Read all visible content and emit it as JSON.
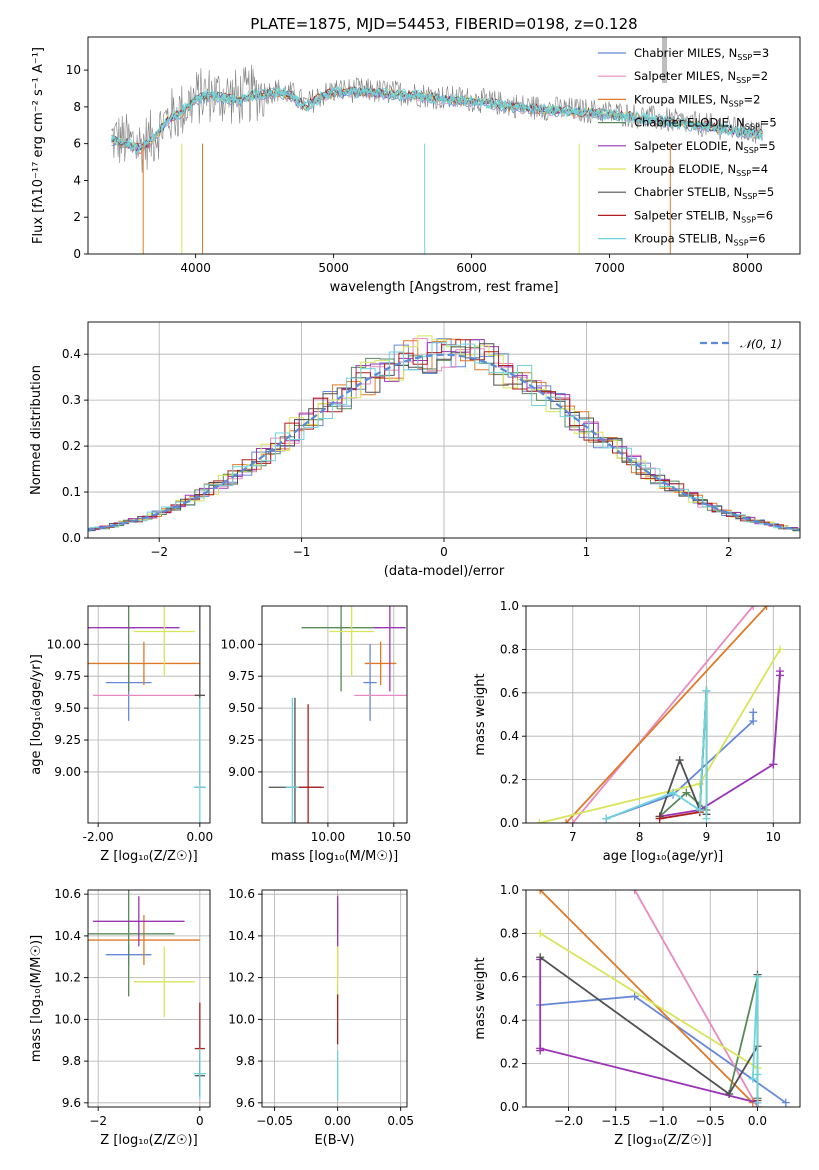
{
  "chart_data": [
    {
      "id": "spectrum",
      "type": "line",
      "title": "PLATE=1875, MJD=54453, FIBERID=0198, z=0.128",
      "xlabel": "wavelength [Angstrom, rest frame]",
      "ylabel": "Flux [fλ10⁻¹⁷ erg cm⁻² s⁻¹ A⁻¹]",
      "xlim": [
        3220,
        8380
      ],
      "ylim": [
        0,
        11.8
      ],
      "x_ticks": [
        4000,
        5000,
        6000,
        7000,
        8000
      ],
      "y_ticks": [
        0,
        2,
        4,
        6,
        8,
        10
      ],
      "grid": false,
      "legend_position": "upper-right",
      "legend": [
        {
          "label": "Chabrier MILES, N",
          "sub": "SSP",
          "tail": "=3",
          "color": "#6688d8"
        },
        {
          "label": "Salpeter MILES, N",
          "sub": "SSP",
          "tail": "=2",
          "color": "#e88ac0"
        },
        {
          "label": "Kroupa MILES, N",
          "sub": "SSP",
          "tail": "=2",
          "color": "#e07a28"
        },
        {
          "label": "Chabrier ELODIE, N",
          "sub": "SSP",
          "tail": "=5",
          "color": "#5a8a5a"
        },
        {
          "label": "Salpeter ELODIE, N",
          "sub": "SSP",
          "tail": "=5",
          "color": "#9a35b5"
        },
        {
          "label": "Kroupa ELODIE, N",
          "sub": "SSP",
          "tail": "=4",
          "color": "#d8e45a"
        },
        {
          "label": "Chabrier STELIB, N",
          "sub": "SSP",
          "tail": "=5",
          "color": "#505050"
        },
        {
          "label": "Salpeter STELIB, N",
          "sub": "SSP",
          "tail": "=6",
          "color": "#b01e1e"
        },
        {
          "label": "Kroupa STELIB, N",
          "sub": "SSP",
          "tail": "=6",
          "color": "#6fd4dc"
        }
      ],
      "series": [
        {
          "role": "observed",
          "color": "#808080",
          "x": [
            3390,
            3500,
            3600,
            3700,
            3800,
            3900,
            4000,
            4100,
            4200,
            4300,
            4400,
            4500,
            4600,
            4700,
            4800,
            4900,
            5000,
            5200,
            5400,
            5600,
            5800,
            6000,
            6200,
            6400,
            6600,
            6800,
            7000,
            7200,
            7400,
            7600,
            7800,
            8000,
            8100
          ],
          "y": [
            6.3,
            6.1,
            5.9,
            6.4,
            7.4,
            7.8,
            8.5,
            8.7,
            8.6,
            8.5,
            8.7,
            8.8,
            8.9,
            8.7,
            8.1,
            8.6,
            8.9,
            8.9,
            8.8,
            8.7,
            8.5,
            8.4,
            8.2,
            8.0,
            7.9,
            7.8,
            7.7,
            7.5,
            7.3,
            7.1,
            6.9,
            6.7,
            6.6
          ]
        },
        {
          "role": "model",
          "color": "#6fd4dc",
          "x": [
            3390,
            3500,
            3600,
            3700,
            3800,
            3900,
            4000,
            4100,
            4200,
            4300,
            4400,
            4500,
            4600,
            4700,
            4800,
            4900,
            5000,
            5200,
            5400,
            5600,
            5800,
            6000,
            6200,
            6400,
            6600,
            6800,
            7000,
            7200,
            7400,
            7600,
            7800,
            8000,
            8100
          ],
          "y": [
            6.2,
            6.0,
            5.7,
            6.3,
            7.3,
            7.7,
            8.4,
            8.6,
            8.5,
            8.3,
            8.6,
            8.7,
            8.8,
            8.6,
            8.0,
            8.5,
            8.8,
            8.8,
            8.7,
            8.6,
            8.4,
            8.3,
            8.1,
            7.9,
            7.8,
            7.7,
            7.6,
            7.4,
            7.2,
            7.0,
            6.8,
            6.6,
            6.5
          ]
        }
      ]
    },
    {
      "id": "residuals",
      "type": "line",
      "xlabel": "(data-model)/error",
      "ylabel": "Normed distribution",
      "xlim": [
        -2.5,
        2.5
      ],
      "ylim": [
        0,
        0.47
      ],
      "x_ticks": [
        -2,
        -1,
        0,
        1,
        2
      ],
      "y_ticks": [
        0.0,
        0.1,
        0.2,
        0.3,
        0.4
      ],
      "grid": true,
      "legend_position": "upper-right",
      "legend": [
        {
          "label": "𝒩(0, 1)",
          "color": "#5a8ad8",
          "style": "dashed"
        }
      ],
      "gaussian": {
        "mean": 0,
        "sigma": 1
      }
    },
    {
      "id": "age-vs-Z",
      "type": "scatter",
      "xlabel": "Z [log₁₀(Z/Z☉)]",
      "ylabel": "age  [log₁₀(age/yr)]",
      "xlim": [
        -2.2,
        0.2
      ],
      "ylim": [
        8.6,
        10.3
      ],
      "x_ticks": [
        -2,
        0
      ],
      "y_ticks": [
        9.0,
        9.25,
        9.5,
        9.75,
        10.0
      ],
      "grid": true,
      "crosses": [
        {
          "color": "#6688d8",
          "x": -1.4,
          "xerr": 0.45,
          "y": 9.7,
          "yerr": 0.3
        },
        {
          "color": "#e88ac0",
          "x": -1.0,
          "xerr": 1.1,
          "y": 9.6,
          "yerr": 0.0
        },
        {
          "color": "#e07a28",
          "x": -1.1,
          "xerr": 1.1,
          "y": 9.85,
          "yerr": 0.17
        },
        {
          "color": "#5a8a5a",
          "x": -1.4,
          "xerr": 0.15,
          "y": 10.13,
          "yerr": 0.5
        },
        {
          "color": "#9a35b5",
          "x": -1.3,
          "xerr": 0.9,
          "y": 10.13,
          "yerr": 0.0
        },
        {
          "color": "#d8e45a",
          "x": -0.7,
          "xerr": 0.6,
          "y": 10.1,
          "yerr": 0.35
        },
        {
          "color": "#505050",
          "x": 0.0,
          "xerr": 0.1,
          "y": 9.6,
          "yerr": 0.7
        },
        {
          "color": "#b01e1e",
          "x": 0.0,
          "xerr": 0.1,
          "y": 8.88,
          "yerr": 0.0
        },
        {
          "color": "#6fd4dc",
          "x": 0.0,
          "xerr": 0.12,
          "y": 8.88,
          "yerr": 0.7
        }
      ]
    },
    {
      "id": "age-vs-mass",
      "type": "scatter",
      "xlabel": "mass [log₁₀(M/M☉)]",
      "ylabel": "",
      "xlim": [
        9.5,
        10.6
      ],
      "ylim": [
        8.6,
        10.3
      ],
      "x_ticks": [
        10.0,
        10.5
      ],
      "y_ticks": [
        9.0,
        9.25,
        9.5,
        9.75,
        10.0
      ],
      "grid": true,
      "crosses": [
        {
          "color": "#6688d8",
          "x": 10.32,
          "xerr": 0.05,
          "y": 9.7,
          "yerr": 0.3
        },
        {
          "color": "#e88ac0",
          "x": 10.4,
          "xerr": 0.2,
          "y": 9.6,
          "yerr": 0.0
        },
        {
          "color": "#e07a28",
          "x": 10.4,
          "xerr": 0.12,
          "y": 9.85,
          "yerr": 0.17
        },
        {
          "color": "#5a8a5a",
          "x": 10.1,
          "xerr": 0.3,
          "y": 10.13,
          "yerr": 0.5
        },
        {
          "color": "#9a35b5",
          "x": 10.47,
          "xerr": 0.12,
          "y": 10.13,
          "yerr": 0.5
        },
        {
          "color": "#d8e45a",
          "x": 10.18,
          "xerr": 0.17,
          "y": 10.1,
          "yerr": 0.35
        },
        {
          "color": "#505050",
          "x": 9.75,
          "xerr": 0.2,
          "y": 8.88,
          "yerr": 0.7
        },
        {
          "color": "#b01e1e",
          "x": 9.85,
          "xerr": 0.12,
          "y": 8.88,
          "yerr": 0.65
        },
        {
          "color": "#6fd4dc",
          "x": 9.73,
          "xerr": 0.05,
          "y": 8.88,
          "yerr": 0.7
        }
      ]
    },
    {
      "id": "weight-vs-age",
      "type": "line",
      "xlabel": "age  [log₁₀(age/yr)]",
      "ylabel": "mass weight",
      "xlim": [
        6.3,
        10.4
      ],
      "ylim": [
        0.0,
        1.0
      ],
      "x_ticks": [
        7,
        8,
        9,
        10
      ],
      "y_ticks": [
        0.0,
        0.2,
        0.4,
        0.6,
        0.8,
        1.0
      ],
      "grid": true,
      "series": [
        {
          "color": "#6688d8",
          "x": [
            7.5,
            8.5,
            9.7,
            9.7
          ],
          "y": [
            0.02,
            0.13,
            0.47,
            0.51
          ]
        },
        {
          "color": "#e88ac0",
          "x": [
            7.0,
            9.7
          ],
          "y": [
            0.0,
            1.0
          ]
        },
        {
          "color": "#e07a28",
          "x": [
            6.9,
            9.9
          ],
          "y": [
            0.0,
            1.0
          ]
        },
        {
          "color": "#5a8a5a",
          "x": [
            8.3,
            8.7,
            9.0,
            9.0,
            8.9
          ],
          "y": [
            0.03,
            0.14,
            0.06,
            0.61,
            0.05
          ]
        },
        {
          "color": "#9a35b5",
          "x": [
            8.3,
            8.9,
            10.0,
            10.1,
            10.1,
            10.0
          ],
          "y": [
            0.03,
            0.06,
            0.27,
            0.68,
            0.7,
            0.27
          ]
        },
        {
          "color": "#d8e45a",
          "x": [
            6.5,
            8.9,
            10.1
          ],
          "y": [
            0.0,
            0.18,
            0.8
          ]
        },
        {
          "color": "#505050",
          "x": [
            8.3,
            8.6,
            8.9,
            9.0,
            9.0
          ],
          "y": [
            0.03,
            0.29,
            0.06,
            0.61,
            0.04
          ]
        },
        {
          "color": "#b01e1e",
          "x": [
            8.3,
            8.9
          ],
          "y": [
            0.02,
            0.05
          ]
        },
        {
          "color": "#6fd4dc",
          "x": [
            7.5,
            8.5,
            8.9,
            9.0,
            9.0
          ],
          "y": [
            0.02,
            0.14,
            0.06,
            0.61,
            0.02
          ]
        }
      ]
    },
    {
      "id": "mass-vs-Z",
      "type": "scatter",
      "xlabel": "Z [log₁₀(Z/Z☉)]",
      "ylabel": "mass [log₁₀(M/M☉)]",
      "xlim": [
        -2.2,
        0.2
      ],
      "ylim": [
        9.58,
        10.62
      ],
      "x_ticks": [
        -2,
        0
      ],
      "y_ticks": [
        9.6,
        9.8,
        10.0,
        10.2,
        10.4,
        10.6
      ],
      "grid": true,
      "crosses": [
        {
          "color": "#6688d8",
          "x": -1.4,
          "xerr": 0.45,
          "y": 10.31,
          "yerr": 0.05
        },
        {
          "color": "#e07a28",
          "x": -1.1,
          "xerr": 1.1,
          "y": 10.38,
          "yerr": 0.12
        },
        {
          "color": "#5a8a5a",
          "x": -1.4,
          "xerr": 0.9,
          "y": 10.41,
          "yerr": 0.3
        },
        {
          "color": "#9a35b5",
          "x": -1.2,
          "xerr": 0.9,
          "y": 10.47,
          "yerr": 0.12
        },
        {
          "color": "#d8e45a",
          "x": -0.7,
          "xerr": 0.6,
          "y": 10.18,
          "yerr": 0.17
        },
        {
          "color": "#b01e1e",
          "x": 0.0,
          "xerr": 0.1,
          "y": 9.86,
          "yerr": 0.22
        },
        {
          "color": "#505050",
          "x": 0.0,
          "xerr": 0.1,
          "y": 9.73,
          "yerr": 0.1
        },
        {
          "color": "#6fd4dc",
          "x": 0.0,
          "xerr": 0.12,
          "y": 9.74,
          "yerr": 0.12
        }
      ]
    },
    {
      "id": "mass-vs-ebv",
      "type": "scatter",
      "xlabel": "E(B-V)",
      "ylabel": "",
      "xlim": [
        -0.06,
        0.055
      ],
      "ylim": [
        9.58,
        10.62
      ],
      "x_ticks": [
        -0.05,
        0.0,
        0.05
      ],
      "y_ticks": [
        9.6,
        9.8,
        10.0,
        10.2,
        10.4,
        10.6
      ],
      "grid": true,
      "crosses": [
        {
          "color": "#e88ac0",
          "x": 0.0,
          "xerr": 0.0,
          "y": 10.4,
          "yerr": 0.2
        },
        {
          "color": "#9a35b5",
          "x": 0.0,
          "xerr": 0.0,
          "y": 10.47,
          "yerr": 0.12
        },
        {
          "color": "#d8e45a",
          "x": 0.0,
          "xerr": 0.0,
          "y": 10.18,
          "yerr": 0.17
        },
        {
          "color": "#b01e1e",
          "x": 0.0,
          "xerr": 0.0,
          "y": 10.0,
          "yerr": 0.12
        },
        {
          "color": "#6fd4dc",
          "x": 0.0,
          "xerr": 0.0,
          "y": 9.73,
          "yerr": 0.12
        }
      ]
    },
    {
      "id": "weight-vs-Z",
      "type": "line",
      "xlabel": "Z [log₁₀(Z/Z☉)]",
      "ylabel": "mass weight",
      "xlim": [
        -2.45,
        0.45
      ],
      "ylim": [
        0.0,
        1.0
      ],
      "x_ticks": [
        -2.0,
        -1.5,
        -1.0,
        -0.5,
        0.0
      ],
      "y_ticks": [
        0.0,
        0.2,
        0.4,
        0.6,
        0.8,
        1.0
      ],
      "grid": true,
      "series": [
        {
          "color": "#6688d8",
          "x": [
            -2.3,
            -1.3,
            0.3
          ],
          "y": [
            0.47,
            0.51,
            0.02
          ]
        },
        {
          "color": "#e88ac0",
          "x": [
            -1.3,
            0.0
          ],
          "y": [
            1.0,
            0.0
          ]
        },
        {
          "color": "#e07a28",
          "x": [
            -2.3,
            -0.05
          ],
          "y": [
            1.0,
            0.02
          ]
        },
        {
          "color": "#5a8a5a",
          "x": [
            -0.3,
            0.0,
            0.0
          ],
          "y": [
            0.06,
            0.6,
            0.04
          ]
        },
        {
          "color": "#9a35b5",
          "x": [
            -2.3,
            -2.3,
            -2.3,
            0.0,
            0.0
          ],
          "y": [
            0.68,
            0.26,
            0.27,
            0.02,
            0.0
          ]
        },
        {
          "color": "#d8e45a",
          "x": [
            -2.3,
            0.0
          ],
          "y": [
            0.8,
            0.18
          ]
        },
        {
          "color": "#505050",
          "x": [
            -2.3,
            -0.3,
            0.0,
            0.0
          ],
          "y": [
            0.69,
            0.06,
            0.28,
            0.61
          ]
        },
        {
          "color": "#b01e1e",
          "x": [
            0.0
          ],
          "y": [
            0.03
          ]
        },
        {
          "color": "#6fd4dc",
          "x": [
            -0.05,
            0.0,
            0.0,
            0.0
          ],
          "y": [
            0.13,
            0.6,
            0.15,
            0.02
          ]
        }
      ]
    }
  ]
}
